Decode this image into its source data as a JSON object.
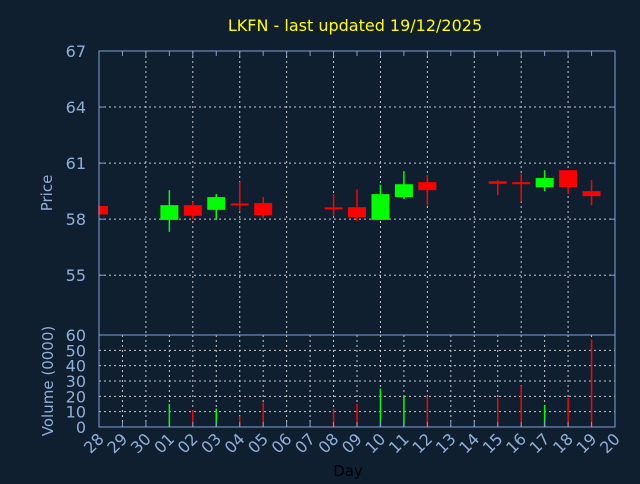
{
  "chart_data": {
    "type": "candlestick",
    "title": "LKFN - last updated 19/12/2025",
    "xlabel": "Day",
    "price_ylabel": "Price",
    "volume_ylabel": "Volume (0000)",
    "price_ylim": [
      51.8,
      67
    ],
    "price_ticks": [
      "67",
      "64",
      "61",
      "58",
      "55"
    ],
    "volume_ylim": [
      0,
      60
    ],
    "volume_ticks": [
      "60",
      "50",
      "40",
      "30",
      "20",
      "10",
      "0"
    ],
    "x_tick_labels": [
      "28",
      "29",
      "30",
      "01",
      "02",
      "03",
      "04",
      "05",
      "06",
      "07",
      "08",
      "09",
      "10",
      "11",
      "12",
      "13",
      "14",
      "15",
      "16",
      "17",
      "18",
      "19",
      "20"
    ],
    "grid": true,
    "colors": {
      "background": "#0f1f30",
      "up": "#00ff00",
      "down": "#ff0000",
      "axis": "#7f9fcf",
      "grid": "#c8c8c8",
      "title": "#ffff00",
      "label": "#8fafd7"
    },
    "candles": [
      {
        "day": "28",
        "open": 58.7,
        "high": 58.7,
        "low": 58.25,
        "close": 58.25,
        "volume": null
      },
      {
        "day": "01",
        "open": 57.96,
        "high": 59.55,
        "low": 57.32,
        "close": 58.75,
        "volume": 15
      },
      {
        "day": "02",
        "open": 58.75,
        "high": 58.95,
        "low": 58.0,
        "close": 58.18,
        "volume": 11
      },
      {
        "day": "03",
        "open": 58.5,
        "high": 59.34,
        "low": 57.96,
        "close": 59.18,
        "volume": 12
      },
      {
        "day": "04",
        "open": 58.84,
        "high": 60.0,
        "low": 58.41,
        "close": 58.77,
        "volume": 7
      },
      {
        "day": "05",
        "open": 58.86,
        "high": 59.18,
        "low": 58.05,
        "close": 58.21,
        "volume": 16
      },
      {
        "day": "08",
        "open": 58.63,
        "high": 59.34,
        "low": 58.18,
        "close": 58.55,
        "volume": 12
      },
      {
        "day": "09",
        "open": 58.64,
        "high": 59.6,
        "low": 57.9,
        "close": 58.1,
        "volume": 15
      },
      {
        "day": "10",
        "open": 57.96,
        "high": 59.84,
        "low": 57.96,
        "close": 59.34,
        "volume": 25
      },
      {
        "day": "11",
        "open": 59.18,
        "high": 60.57,
        "low": 59.07,
        "close": 59.87,
        "volume": 20
      },
      {
        "day": "12",
        "open": 59.98,
        "high": 60.36,
        "low": 58.73,
        "close": 59.55,
        "volume": 20
      },
      {
        "day": "15",
        "open": 60.03,
        "high": 60.09,
        "low": 59.29,
        "close": 59.89,
        "volume": 19
      },
      {
        "day": "16",
        "open": 59.98,
        "high": 60.43,
        "low": 58.95,
        "close": 59.89,
        "volume": 27
      },
      {
        "day": "17",
        "open": 59.71,
        "high": 60.62,
        "low": 59.5,
        "close": 60.2,
        "volume": 14
      },
      {
        "day": "18",
        "open": 60.62,
        "high": 60.62,
        "low": 59.36,
        "close": 59.71,
        "volume": 19
      },
      {
        "day": "19",
        "open": 59.5,
        "high": 60.09,
        "low": 58.75,
        "close": 59.23,
        "volume": 57
      }
    ]
  }
}
